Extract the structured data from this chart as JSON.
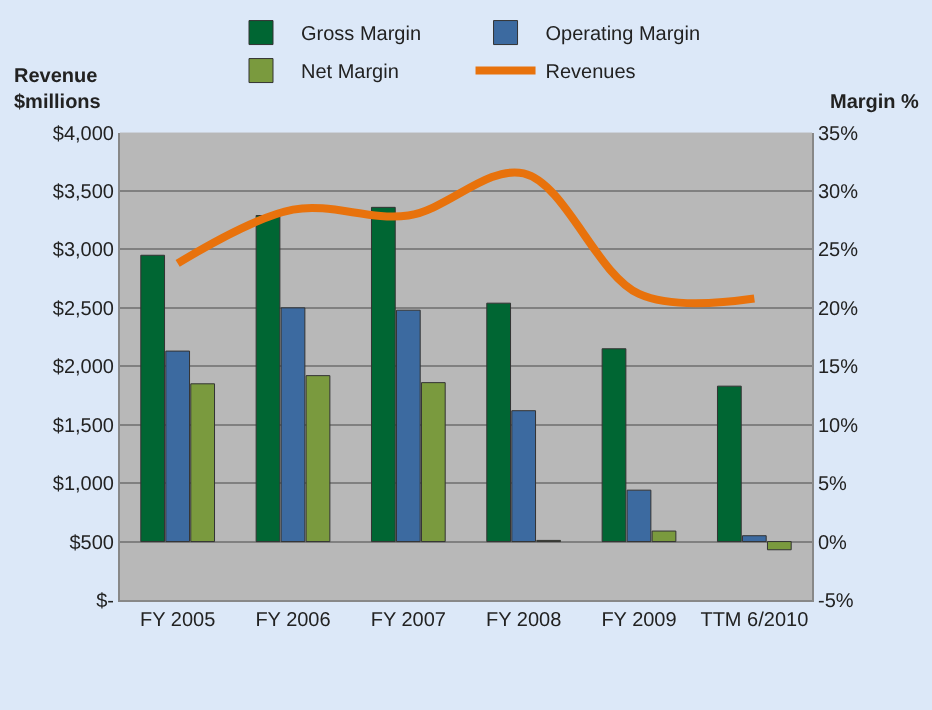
{
  "chart_data": {
    "type": "bar",
    "ylabel": "Revenue\n$millions",
    "y2label": "Margin %",
    "categories": [
      "FY 2005",
      "FY 2006",
      "FY 2007",
      "FY 2008",
      "FY 2009",
      "TTM 6/2010"
    ],
    "series": [
      {
        "name": "Gross Margin",
        "color": "#006633",
        "axis": "y2",
        "values": [
          24.5,
          27.9,
          28.6,
          20.4,
          16.5,
          13.3
        ]
      },
      {
        "name": "Operating Margin",
        "color": "#3c6aa0",
        "axis": "y2",
        "values": [
          16.3,
          20.0,
          19.8,
          11.2,
          4.4,
          0.5
        ]
      },
      {
        "name": "Net Margin",
        "color": "#7a9a3e",
        "axis": "y2",
        "values": [
          13.5,
          14.2,
          13.6,
          0.1,
          0.9,
          -0.7
        ]
      },
      {
        "name": "Revenues",
        "type": "line",
        "color": "#e8720c",
        "values": [
          2880,
          3340,
          3290,
          3650,
          2620,
          2580
        ]
      }
    ],
    "ylim": [
      0,
      4000
    ],
    "yticks": [
      {
        "value": 0,
        "label": "$-"
      },
      {
        "value": 500,
        "label": "$500"
      },
      {
        "value": 1000,
        "label": "$1,000"
      },
      {
        "value": 1500,
        "label": "$1,500"
      },
      {
        "value": 2000,
        "label": "$2,000"
      },
      {
        "value": 2500,
        "label": "$2,500"
      },
      {
        "value": 3000,
        "label": "$3,000"
      },
      {
        "value": 3500,
        "label": "$3,500"
      },
      {
        "value": 4000,
        "label": "$4,000"
      }
    ],
    "y2lim": [
      -5,
      35
    ],
    "y2ticks": [
      {
        "value": -5,
        "label": "-5%"
      },
      {
        "value": 0,
        "label": "0%"
      },
      {
        "value": 5,
        "label": "5%"
      },
      {
        "value": 10,
        "label": "10%"
      },
      {
        "value": 15,
        "label": "15%"
      },
      {
        "value": 20,
        "label": "20%"
      },
      {
        "value": 25,
        "label": "25%"
      },
      {
        "value": 30,
        "label": "30%"
      },
      {
        "value": 35,
        "label": "35%"
      }
    ],
    "grid": "y",
    "legend": "top",
    "marker": "none",
    "line_style": "solid"
  }
}
